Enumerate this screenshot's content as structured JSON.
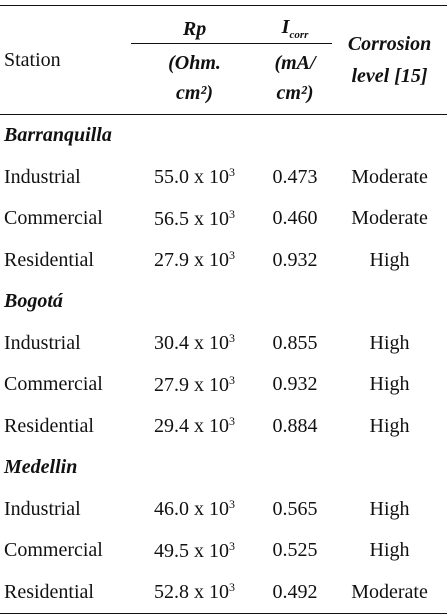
{
  "header": {
    "station": "Station",
    "rp": "Rp",
    "icorr_main": "I",
    "icorr_sub": "corr",
    "corrosion_line1": "Corrosion",
    "corrosion_line2": "level [15]",
    "rp_unit_line1": "(Ohm.",
    "rp_unit_line2": "cm²)",
    "icorr_unit_line1": "(mA/",
    "icorr_unit_line2": "cm²)"
  },
  "groups": [
    {
      "name": "Barranquilla",
      "rows": [
        {
          "station": "Industrial",
          "rp_base": "55.0 x 10",
          "rp_exp": "3",
          "icorr": "0.473",
          "level": "Moderate"
        },
        {
          "station": "Commercial",
          "rp_base": "56.5 x 10",
          "rp_exp": "3",
          "icorr": "0.460",
          "level": "Moderate"
        },
        {
          "station": "Residential",
          "rp_base": "27.9 x 10",
          "rp_exp": "3",
          "icorr": "0.932",
          "level": "High"
        }
      ]
    },
    {
      "name": "Bogotá",
      "rows": [
        {
          "station": "Industrial",
          "rp_base": "30.4 x 10",
          "rp_exp": "3",
          "icorr": "0.855",
          "level": "High"
        },
        {
          "station": "Commercial",
          "rp_base": "27.9 x 10",
          "rp_exp": "3",
          "icorr": "0.932",
          "level": "High"
        },
        {
          "station": "Residential",
          "rp_base": "29.4 x 10",
          "rp_exp": "3",
          "icorr": "0.884",
          "level": "High"
        }
      ]
    },
    {
      "name": "Medellin",
      "rows": [
        {
          "station": "Industrial",
          "rp_base": "46.0 x 10",
          "rp_exp": "3",
          "icorr": "0.565",
          "level": "High"
        },
        {
          "station": "Commercial",
          "rp_base": "49.5 x 10",
          "rp_exp": "3",
          "icorr": "0.525",
          "level": "High"
        },
        {
          "station": "Residential",
          "rp_base": "52.8 x 10",
          "rp_exp": "3",
          "icorr": "0.492",
          "level": "Moderate"
        }
      ]
    }
  ]
}
